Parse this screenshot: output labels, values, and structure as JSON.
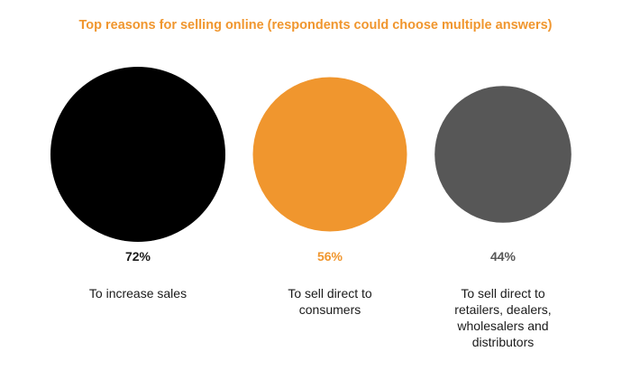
{
  "chart_data": {
    "type": "bubble",
    "title": "Top reasons for selling online (respondents could choose multiple answers)",
    "categories": [
      "To increase sales",
      "To sell direct to\nconsumers",
      "To sell direct to\nretailers, dealers,\nwholesalers and\ndistributors"
    ],
    "values": [
      72,
      56,
      44
    ],
    "value_labels": [
      "72%",
      "56%",
      "44%"
    ],
    "unit": "%",
    "grid": false,
    "legend": "none"
  },
  "colors": {
    "title": "#f0962e",
    "bubbles": [
      "#000000",
      "#f0962e",
      "#575757"
    ],
    "value_labels": [
      "#1a1a1a",
      "#f0962e",
      "#575757"
    ]
  }
}
